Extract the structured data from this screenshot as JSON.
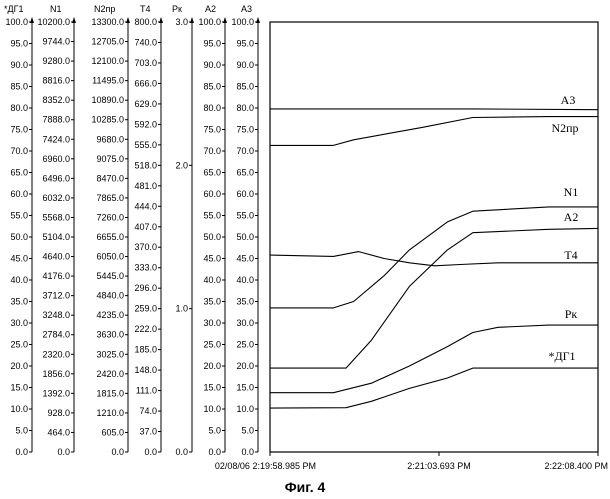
{
  "chart_data": {
    "type": "line",
    "axes": [
      {
        "name": "*ДГ1",
        "ticks": [
          "100.0",
          "95.0",
          "90.0",
          "85.0",
          "80.0",
          "75.0",
          "70.0",
          "65.0",
          "60.0",
          "55.0",
          "50.0",
          "45.0",
          "40.0",
          "35.0",
          "30.0",
          "25.0",
          "20.0",
          "15.0",
          "10.0",
          "5.0",
          "0.0"
        ]
      },
      {
        "name": "N1",
        "ticks": [
          "10200.0",
          "9744.0",
          "9280.0",
          "8816.0",
          "8352.0",
          "7888.0",
          "7424.0",
          "6960.0",
          "6496.0",
          "6032.0",
          "5568.0",
          "5104.0",
          "4640.0",
          "4176.0",
          "3712.0",
          "3248.0",
          "2784.0",
          "2320.0",
          "1856.0",
          "1392.0",
          "928.0",
          "464.0",
          "0.0"
        ]
      },
      {
        "name": "N2пр",
        "ticks": [
          "13300.0",
          "12705.0",
          "12100.0",
          "11495.0",
          "10890.0",
          "10285.0",
          "9680.0",
          "9075.0",
          "8470.0",
          "7865.0",
          "7260.0",
          "6655.0",
          "6050.0",
          "5445.0",
          "4840.0",
          "4235.0",
          "3630.0",
          "3025.0",
          "2420.0",
          "1815.0",
          "1210.0",
          "605.0",
          "0.0"
        ]
      },
      {
        "name": "T4",
        "ticks": [
          "800.0",
          "740.0",
          "703.0",
          "666.0",
          "629.0",
          "592.0",
          "555.0",
          "518.0",
          "481.0",
          "444.0",
          "407.0",
          "370.0",
          "333.0",
          "296.0",
          "259.0",
          "222.0",
          "185.0",
          "148.0",
          "111.0",
          "74.0",
          "37.0",
          "0.0"
        ]
      },
      {
        "name": "Рк",
        "ticks": [
          "3.0",
          "2.0",
          "1.0",
          "0.0"
        ]
      },
      {
        "name": "A2",
        "ticks": [
          "100.0",
          "95.0",
          "90.0",
          "85.0",
          "80.0",
          "75.0",
          "70.0",
          "65.0",
          "60.0",
          "55.0",
          "50.0",
          "45.0",
          "40.0",
          "35.0",
          "30.0",
          "25.0",
          "20.0",
          "15.0",
          "10.0",
          "5.0",
          "0.0"
        ]
      },
      {
        "name": "A3",
        "ticks": [
          "100.0",
          "95.0",
          "90.0",
          "85.0",
          "80.0",
          "75.0",
          "70.0",
          "65.0",
          "60.0",
          "55.0",
          "50.0",
          "45.0",
          "40.0",
          "35.0",
          "30.0",
          "25.0",
          "20.0",
          "15.0",
          "10.0",
          "5.0",
          "0.0"
        ]
      }
    ],
    "x_ticks": [
      "02/08/06  2:19:58.985 PM",
      "2:21:03.693 PM",
      "2:22:08.400 PM"
    ],
    "xlim": [
      0,
      129.415
    ],
    "ylim": [
      0,
      100
    ],
    "series": [
      {
        "name": "A3",
        "values": [
          [
            0,
            79.8
          ],
          [
            30,
            79.8
          ],
          [
            80,
            79.8
          ],
          [
            129.4,
            79.6
          ]
        ]
      },
      {
        "name": "N2пр",
        "values": [
          [
            0,
            71.3
          ],
          [
            25,
            71.3
          ],
          [
            33,
            72.6
          ],
          [
            60,
            75.5
          ],
          [
            80,
            77.8
          ],
          [
            110,
            78
          ],
          [
            129.4,
            78
          ]
        ]
      },
      {
        "name": "N1",
        "values": [
          [
            0,
            33.5
          ],
          [
            25,
            33.5
          ],
          [
            33,
            35
          ],
          [
            45,
            41
          ],
          [
            55,
            47
          ],
          [
            70,
            53.5
          ],
          [
            80,
            56
          ],
          [
            110,
            57
          ],
          [
            129.4,
            57
          ]
        ]
      },
      {
        "name": "A2",
        "values": [
          [
            0,
            19.5
          ],
          [
            30,
            19.5
          ],
          [
            40,
            26
          ],
          [
            55,
            38.5
          ],
          [
            70,
            47
          ],
          [
            80,
            51
          ],
          [
            110,
            51.8
          ],
          [
            129.4,
            52
          ]
        ]
      },
      {
        "name": "T4",
        "values": [
          [
            0,
            45.8
          ],
          [
            25,
            45.5
          ],
          [
            35,
            46.6
          ],
          [
            45,
            45
          ],
          [
            55,
            44
          ],
          [
            65,
            43.3
          ],
          [
            75,
            43.6
          ],
          [
            90,
            44
          ],
          [
            110,
            44
          ],
          [
            129.4,
            44
          ]
        ]
      },
      {
        "name": "Рк",
        "values": [
          [
            0,
            13.8
          ],
          [
            25,
            13.8
          ],
          [
            40,
            16
          ],
          [
            55,
            20
          ],
          [
            70,
            24.5
          ],
          [
            80,
            27.8
          ],
          [
            90,
            29
          ],
          [
            110,
            29.5
          ],
          [
            129.4,
            29.5
          ]
        ]
      },
      {
        "name": "*ДГ1",
        "values": [
          [
            0,
            10.2
          ],
          [
            30,
            10.3
          ],
          [
            40,
            11.8
          ],
          [
            55,
            14.8
          ],
          [
            70,
            17.2
          ],
          [
            80,
            19.5
          ],
          [
            90,
            19.5
          ],
          [
            110,
            19.5
          ],
          [
            129.4,
            19.5
          ]
        ]
      }
    ],
    "caption": "Фиг. 4"
  }
}
